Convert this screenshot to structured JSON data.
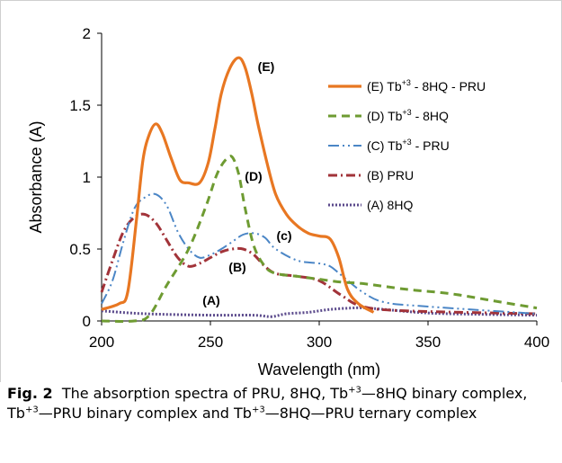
{
  "chart_data": {
    "type": "line",
    "xlabel": "Wavelength (nm)",
    "ylabel": "Absorbance (A)",
    "xlim": [
      200,
      400
    ],
    "ylim": [
      0,
      2
    ],
    "xticks": [
      200,
      250,
      300,
      350,
      400
    ],
    "yticks": [
      0,
      0.5,
      1,
      1.5,
      2
    ],
    "ytick_labels": [
      "0",
      "0.5",
      "1",
      "1.5",
      "2"
    ],
    "xtick_labels": [
      "200",
      "250",
      "300",
      "350",
      "400"
    ],
    "grid": false,
    "legend_position": "top-right",
    "series": [
      {
        "name": "(E) Tb+3 - 8HQ - PRU",
        "legend_base": "(E) Tb",
        "legend_sup": "+3",
        "legend_rest": " - 8HQ - PRU",
        "label": "(E)",
        "color": "#E87722",
        "style": "solid",
        "x": [
          200,
          208,
          212,
          216,
          219,
          222,
          225,
          228,
          232,
          236,
          240,
          245,
          249,
          252,
          255,
          259,
          263,
          266,
          269,
          272,
          276,
          280,
          285,
          290,
          295,
          300,
          305,
          309,
          313,
          318,
          325
        ],
        "y": [
          0.08,
          0.12,
          0.2,
          0.7,
          1.12,
          1.3,
          1.37,
          1.3,
          1.13,
          0.98,
          0.96,
          0.96,
          1.1,
          1.33,
          1.58,
          1.76,
          1.83,
          1.76,
          1.58,
          1.36,
          1.1,
          0.88,
          0.74,
          0.66,
          0.61,
          0.59,
          0.57,
          0.44,
          0.22,
          0.12,
          0.06
        ]
      },
      {
        "name": "(D) Tb+3 - 8HQ",
        "legend_base": "(D) Tb",
        "legend_sup": "+3",
        "legend_rest": " - 8HQ",
        "label": "(D)",
        "color": "#6E9B32",
        "style": "dash",
        "x": [
          200,
          215,
          222,
          230,
          240,
          248,
          253,
          257,
          260,
          263,
          266,
          270,
          275,
          280,
          290,
          300,
          310,
          320,
          340,
          360,
          380,
          400
        ],
        "y": [
          0.0,
          0.0,
          0.04,
          0.25,
          0.5,
          0.8,
          1.02,
          1.12,
          1.14,
          1.02,
          0.78,
          0.52,
          0.38,
          0.33,
          0.31,
          0.29,
          0.27,
          0.26,
          0.22,
          0.19,
          0.14,
          0.09
        ]
      },
      {
        "name": "(C) Tb+3 - PRU",
        "legend_base": "(C) Tb",
        "legend_sup": "+3",
        "legend_rest": " - PRU",
        "label": "(c)",
        "color": "#4B86C6",
        "style": "dashdotdot",
        "x": [
          200,
          205,
          210,
          215,
          220,
          225,
          230,
          235,
          240,
          245,
          250,
          255,
          260,
          265,
          270,
          275,
          280,
          290,
          300,
          305,
          310,
          320,
          330,
          350,
          400
        ],
        "y": [
          0.12,
          0.28,
          0.55,
          0.78,
          0.86,
          0.88,
          0.8,
          0.62,
          0.5,
          0.44,
          0.46,
          0.5,
          0.55,
          0.6,
          0.61,
          0.58,
          0.5,
          0.42,
          0.4,
          0.38,
          0.32,
          0.2,
          0.13,
          0.1,
          0.05
        ]
      },
      {
        "name": "(B) PRU",
        "legend_base": "(B) PRU",
        "legend_sup": "",
        "legend_rest": "",
        "label": "(B)",
        "color": "#A23339",
        "style": "dashdot",
        "x": [
          200,
          205,
          210,
          215,
          220,
          225,
          230,
          235,
          240,
          245,
          250,
          255,
          260,
          265,
          270,
          275,
          280,
          290,
          300,
          310,
          320,
          340,
          400
        ],
        "y": [
          0.2,
          0.42,
          0.62,
          0.72,
          0.74,
          0.68,
          0.56,
          0.44,
          0.38,
          0.4,
          0.44,
          0.48,
          0.5,
          0.5,
          0.46,
          0.38,
          0.33,
          0.31,
          0.28,
          0.18,
          0.1,
          0.07,
          0.05
        ]
      },
      {
        "name": "(A) 8HQ",
        "legend_base": "(A) 8HQ",
        "legend_sup": "",
        "legend_rest": "",
        "label": "(A)",
        "color": "#5B4A8C",
        "style": "dotted",
        "x": [
          200,
          220,
          250,
          270,
          278,
          285,
          295,
          305,
          315,
          322,
          330,
          345,
          360,
          400
        ],
        "y": [
          0.07,
          0.05,
          0.04,
          0.04,
          0.03,
          0.05,
          0.06,
          0.08,
          0.09,
          0.09,
          0.08,
          0.06,
          0.05,
          0.04
        ]
      }
    ]
  },
  "caption": {
    "label": "Fig. 2",
    "part1": "The absorption spectra of PRU, 8HQ, Tb",
    "sup1": "+3",
    "part2": "—8HQ binary complex, Tb",
    "sup2": "+3",
    "part3": "—PRU binary complex and Tb",
    "sup3": "+3",
    "part4": "—8HQ—PRU ternary complex"
  }
}
